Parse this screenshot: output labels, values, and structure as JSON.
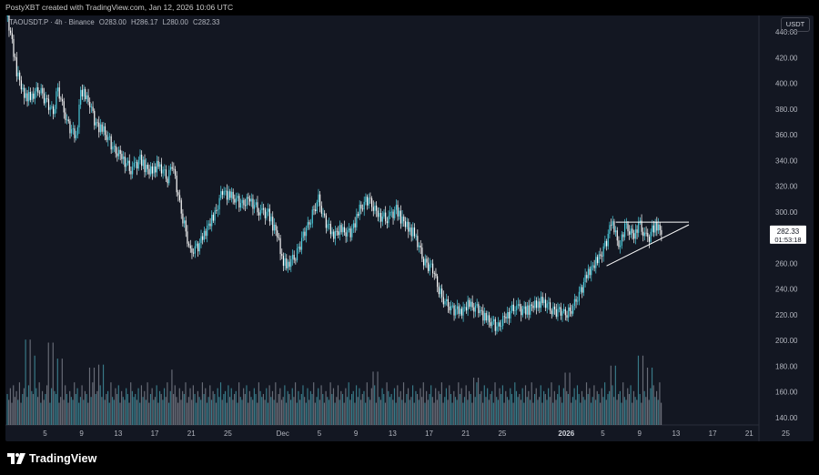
{
  "credit": "PostyXBT created with TradingView.com, Jan 12, 2026 10:06 UTC",
  "legend": {
    "symbol": "TAOUSDT.P · 4h · Binance",
    "open": "O283.00",
    "high": "H286.17",
    "low": "L280.00",
    "close": "C282.33"
  },
  "currency_label": "USDT",
  "price_tag": {
    "price": "282.33",
    "countdown": "01:53:18"
  },
  "brand": "TradingView",
  "colors": {
    "background": "#131722",
    "candle_up": "#4dd0e1",
    "candle_down": "#ffffff",
    "volume_up": "#3f8c9a",
    "volume_down": "#787b86",
    "axis_text": "#b2b5be",
    "trendline": "#ffffff"
  },
  "chart_data": {
    "type": "candlestick",
    "title": "TAOUSDT.P · 4h · Binance",
    "ylim": [
      130,
      450
    ],
    "y_ticks": [
      140,
      160,
      180,
      200,
      220,
      240,
      260,
      280,
      300,
      320,
      340,
      360,
      380,
      400,
      420,
      440
    ],
    "y_tick_labels": [
      "140.00",
      "160.00",
      "180.00",
      "200.00",
      "220.00",
      "240.00",
      "260.00",
      "280.00",
      "300.00",
      "320.00",
      "340.00",
      "360.00",
      "380.00",
      "400.00",
      "420.00",
      "440.00"
    ],
    "x_ticks": [
      {
        "label": "5",
        "day": 5
      },
      {
        "label": "9",
        "day": 9
      },
      {
        "label": "13",
        "day": 13
      },
      {
        "label": "17",
        "day": 17
      },
      {
        "label": "21",
        "day": 21
      },
      {
        "label": "25",
        "day": 25
      },
      {
        "label": "Dec",
        "day": 31
      },
      {
        "label": "5",
        "day": 35
      },
      {
        "label": "9",
        "day": 39
      },
      {
        "label": "13",
        "day": 43
      },
      {
        "label": "17",
        "day": 47
      },
      {
        "label": "21",
        "day": 51
      },
      {
        "label": "25",
        "day": 55
      },
      {
        "label": "2026",
        "day": 62
      },
      {
        "label": "5",
        "day": 66
      },
      {
        "label": "9",
        "day": 70
      },
      {
        "label": "13",
        "day": 74
      },
      {
        "label": "17",
        "day": 78
      },
      {
        "label": "21",
        "day": 82
      },
      {
        "label": "25",
        "day": 86
      }
    ],
    "price_path": [
      [
        1.5,
        452
      ],
      [
        2.0,
        430
      ],
      [
        2.5,
        410
      ],
      [
        3.2,
        392
      ],
      [
        4.0,
        388
      ],
      [
        5.0,
        396
      ],
      [
        6.0,
        382
      ],
      [
        6.5,
        378
      ],
      [
        7.0,
        395
      ],
      [
        8.0,
        370
      ],
      [
        9.0,
        357
      ],
      [
        9.5,
        394
      ],
      [
        10.5,
        385
      ],
      [
        11.0,
        370
      ],
      [
        12.0,
        363
      ],
      [
        13.0,
        350
      ],
      [
        14.0,
        342
      ],
      [
        15.0,
        332
      ],
      [
        16.0,
        340
      ],
      [
        17.0,
        331
      ],
      [
        18.0,
        336
      ],
      [
        19.0,
        326
      ],
      [
        19.5,
        338
      ],
      [
        20.0,
        318
      ],
      [
        21.0,
        283
      ],
      [
        21.5,
        268
      ],
      [
        22.5,
        275
      ],
      [
        23.5,
        290
      ],
      [
        24.0,
        295
      ],
      [
        25.0,
        316
      ],
      [
        26.0,
        312
      ],
      [
        27.0,
        306
      ],
      [
        28.0,
        309
      ],
      [
        29.0,
        300
      ],
      [
        30.0,
        298
      ],
      [
        31.0,
        282
      ],
      [
        31.5,
        264
      ],
      [
        32.0,
        257
      ],
      [
        33.0,
        266
      ],
      [
        34.0,
        284
      ],
      [
        35.0,
        300
      ],
      [
        35.5,
        310
      ],
      [
        36.0,
        297
      ],
      [
        37.0,
        282
      ],
      [
        38.0,
        286
      ],
      [
        39.0,
        283
      ],
      [
        40.0,
        302
      ],
      [
        41.0,
        310
      ],
      [
        42.0,
        297
      ],
      [
        43.0,
        294
      ],
      [
        44.0,
        301
      ],
      [
        45.0,
        290
      ],
      [
        46.0,
        282
      ],
      [
        47.0,
        262
      ],
      [
        48.0,
        255
      ],
      [
        49.0,
        232
      ],
      [
        50.0,
        225
      ],
      [
        51.0,
        222
      ],
      [
        52.0,
        228
      ],
      [
        53.0,
        224
      ],
      [
        54.0,
        216
      ],
      [
        55.0,
        210
      ],
      [
        56.0,
        218
      ],
      [
        57.0,
        226
      ],
      [
        58.0,
        222
      ],
      [
        59.0,
        227
      ],
      [
        60.0,
        230
      ],
      [
        61.0,
        224
      ],
      [
        62.0,
        222
      ],
      [
        63.0,
        221
      ],
      [
        64.0,
        236
      ],
      [
        65.0,
        253
      ],
      [
        66.0,
        262
      ],
      [
        67.0,
        276
      ],
      [
        67.5,
        294
      ],
      [
        68.0,
        282
      ],
      [
        68.5,
        272
      ],
      [
        69.0,
        290
      ],
      [
        69.5,
        285
      ],
      [
        70.0,
        280
      ],
      [
        70.5,
        291
      ],
      [
        71.0,
        284
      ],
      [
        71.5,
        278
      ],
      [
        72.0,
        285
      ],
      [
        72.5,
        290
      ],
      [
        73.0,
        282.33
      ]
    ],
    "price_noise": [
      3,
      -4,
      2,
      5,
      -3,
      4,
      -5,
      3,
      1,
      -2,
      4,
      -3,
      2,
      -4,
      5,
      -1,
      3,
      -3,
      2,
      4,
      -2,
      -4,
      3,
      1,
      -5,
      2,
      4,
      -3,
      1,
      3,
      -2,
      -4,
      5,
      2,
      -3,
      1,
      4,
      -1,
      -3,
      2,
      3,
      -5,
      1,
      4,
      -2,
      3,
      -4,
      2,
      1,
      -3,
      5,
      -2,
      3,
      -1,
      -4,
      2,
      4,
      -3,
      1,
      2,
      -5,
      3,
      -2,
      4,
      -1,
      -3,
      2,
      5,
      -4,
      1,
      3,
      -2,
      -3,
      4,
      2,
      -1,
      3,
      -4,
      1,
      5,
      -2,
      -3,
      2,
      4
    ],
    "volume_noise": [
      5,
      3,
      7,
      2,
      8,
      4,
      6,
      3,
      9,
      2,
      5,
      7,
      3,
      4,
      8,
      2,
      6,
      5,
      3,
      7,
      4,
      9,
      2,
      6,
      3,
      5,
      8,
      4,
      2,
      7,
      3,
      6,
      5,
      9,
      2,
      4,
      7,
      3,
      8,
      5,
      2,
      6,
      4,
      3,
      9,
      5,
      7,
      2,
      4,
      8,
      3,
      6,
      5,
      2,
      7,
      4,
      9,
      3,
      5,
      6,
      2,
      8,
      4,
      7,
      3,
      5,
      6,
      2,
      9,
      4,
      3,
      7,
      5,
      8,
      2,
      6,
      4,
      3,
      7,
      5,
      2,
      9,
      6,
      4
    ],
    "volume_spikes": [
      [
        3,
        58
      ],
      [
        4,
        42
      ],
      [
        6,
        55
      ],
      [
        7,
        39
      ],
      [
        10,
        30
      ],
      [
        11,
        33
      ],
      [
        19,
        28
      ],
      [
        41,
        26
      ],
      [
        52,
        20
      ],
      [
        62,
        25
      ],
      [
        67,
        32
      ],
      [
        70,
        42
      ],
      [
        71,
        30
      ]
    ],
    "current_price": 282.33,
    "triangle": {
      "resistance": [
        [
          68.0,
          292
        ],
        [
          76.0,
          292
        ]
      ],
      "support": [
        [
          67.0,
          258
        ],
        [
          76.0,
          290
        ]
      ]
    }
  }
}
